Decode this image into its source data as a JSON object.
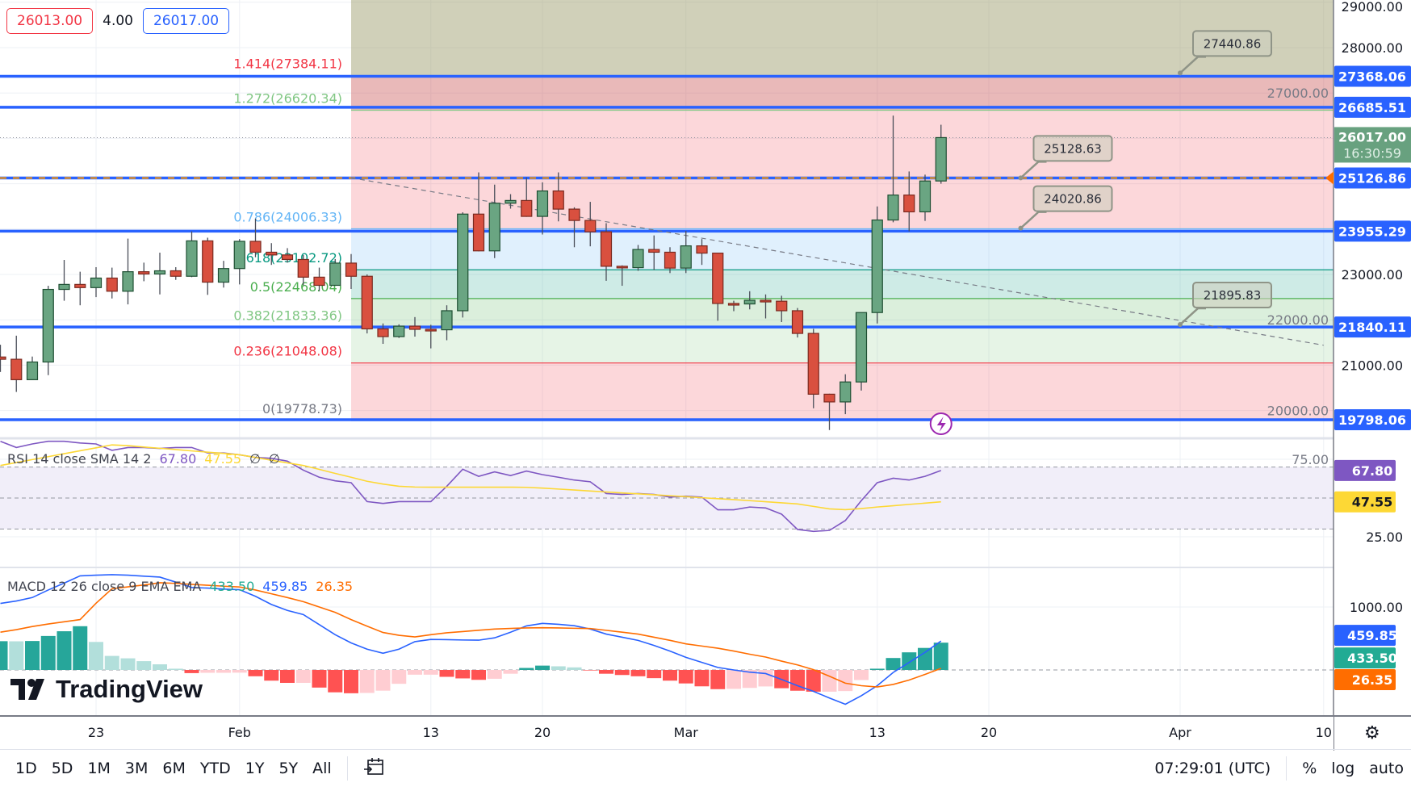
{
  "quote": {
    "bid": "26013.00",
    "spread": "4.00",
    "ask": "26017.00"
  },
  "colors": {
    "up": "#6aa582",
    "up_border": "#1f4f33",
    "down": "#d9503f",
    "down_border": "#7a2a20",
    "hline": "#2962ff",
    "rsi": "#7e57c2",
    "rsi_sma": "#fdd835",
    "macd": "#2962ff",
    "signal": "#ff6d00",
    "hist_up_strong": "#26a69a",
    "hist_up_weak": "#b2dfdb",
    "hist_down_strong": "#ff5252",
    "hist_down_weak": "#ffcdd2",
    "price_label": "#68a17f"
  },
  "logo": {
    "text": "TradingView",
    "icon": "tradingview-logo-icon"
  },
  "rsi_legend": {
    "title": "RSI 14 close SMA 14 2",
    "rsi": "67.80",
    "sma": "47.55",
    "extra1": "∅",
    "extra2": "∅"
  },
  "macd_legend": {
    "title": "MACD 12 26 close 9 EMA EMA",
    "hist": "433.50",
    "macd": "459.85",
    "signal": "26.35"
  },
  "time_axis": {
    "ticks": [
      {
        "date": "2023-01-23",
        "label": "23"
      },
      {
        "date": "2023-02-01",
        "label": "Feb"
      },
      {
        "date": "2023-02-13",
        "label": "13"
      },
      {
        "date": "2023-02-20",
        "label": "20"
      },
      {
        "date": "2023-03-01",
        "label": "Mar"
      },
      {
        "date": "2023-03-13",
        "label": "13"
      },
      {
        "date": "2023-03-20",
        "label": "20"
      },
      {
        "date": "2023-04-01",
        "label": "Apr"
      },
      {
        "date": "2023-04-10",
        "label": "10"
      }
    ],
    "settings_icon": "gear-icon"
  },
  "price_axis": {
    "ticks": [
      "29000.00",
      "28000.00",
      "27000.00",
      "23000.00",
      "22000.00",
      "21000.00",
      "20000.00"
    ],
    "labels": [
      {
        "value": "27368.06",
        "color": "#2962ff"
      },
      {
        "value": "26685.51",
        "color": "#2962ff"
      },
      {
        "value": "25126.86",
        "color": "#2962ff",
        "marker": "#ff6d00"
      },
      {
        "value": "23955.29",
        "color": "#2962ff"
      },
      {
        "value": "21840.11",
        "color": "#2962ff"
      },
      {
        "value": "19798.06",
        "color": "#2962ff"
      }
    ],
    "last_price": {
      "value": "26017.00",
      "countdown": "16:30:59"
    },
    "rsi_ticks": [
      "75.00",
      "25.00"
    ],
    "rsi_labels": [
      {
        "value": "67.80",
        "color": "#7e57c2",
        "text": "#ffffff"
      },
      {
        "value": "47.55",
        "color": "#fdd835",
        "text": "#131722"
      }
    ],
    "macd_ticks": [
      "1000.00"
    ],
    "macd_labels": [
      {
        "value": "459.85",
        "color": "#2962ff"
      },
      {
        "value": "433.50",
        "color": "#22ab94"
      },
      {
        "value": "26.35",
        "color": "#ff6d00"
      }
    ]
  },
  "toolbar": {
    "ranges": [
      "1D",
      "5D",
      "1M",
      "3M",
      "6M",
      "YTD",
      "1Y",
      "5Y",
      "All"
    ],
    "date_range_icon": "calendar-goto-icon",
    "clock": "07:29:01 (UTC)",
    "percent": "%",
    "log": "log",
    "auto": "auto"
  },
  "drawings": {
    "horizontal_lines": [
      27368.06,
      26685.51,
      25126.86,
      23955.29,
      21840.11,
      19798.06
    ],
    "fib": {
      "start_date": "2023-02-08",
      "levels": [
        {
          "ratio": 0,
          "price": 19778.73,
          "label": "0(19778.73)",
          "color": "#787b86",
          "fill": "rgba(242,54,69,0.2)"
        },
        {
          "ratio": 0.236,
          "price": 21048.08,
          "label": "0.236(21048.08)",
          "color": "#f23645",
          "fill": "rgba(129,199,132,0.2)"
        },
        {
          "ratio": 0.382,
          "price": 21833.36,
          "label": "0.382(21833.36)",
          "color": "#81c784",
          "fill": "rgba(76,175,80,0.2)"
        },
        {
          "ratio": 0.5,
          "price": 22468.04,
          "label": "0.5(22468.04)",
          "color": "#4caf50",
          "fill": "rgba(8,153,129,0.2)"
        },
        {
          "ratio": 0.618,
          "price": 23102.72,
          "label": "0.618(23102.72)",
          "color": "#089981",
          "fill": "rgba(100,181,246,0.2)"
        },
        {
          "ratio": 0.786,
          "price": 24006.33,
          "label": "0.786(24006.33)",
          "color": "#64b5f6",
          "fill": "rgba(242,54,69,0.2)"
        },
        {
          "ratio": 1.272,
          "price": 26620.34,
          "label": "1.272(26620.34)",
          "color": "#81c784",
          "fill": "rgba(200,80,80,0.4)"
        },
        {
          "ratio": 1.414,
          "price": 27384.11,
          "label": "1.414(27384.11)",
          "color": "#f23645",
          "fill": "rgba(150,150,100,0.45)"
        }
      ]
    },
    "trend_line": {
      "start": [
        "2023-02-08",
        25130
      ],
      "end": [
        "2023-04-10",
        21440
      ]
    },
    "callouts": [
      {
        "date": "2023-04-01",
        "price": 27440.86,
        "label": "27440.86"
      },
      {
        "date": "2023-03-22",
        "price": 25128.63,
        "label": "25128.63"
      },
      {
        "date": "2023-03-22",
        "price": 24020.86,
        "label": "24020.86"
      },
      {
        "date": "2023-04-01",
        "price": 21895.83,
        "label": "21895.83"
      }
    ],
    "alert_icon": "lightning-icon"
  },
  "chart_data": [
    {
      "type": "candlestick",
      "ylim": [
        19200,
        29050
      ],
      "columns": [
        "date",
        "open",
        "high",
        "low",
        "close"
      ],
      "candles": [
        [
          "2023-01-17",
          21180,
          21450,
          20850,
          21130
        ],
        [
          "2023-01-18",
          21130,
          21650,
          20410,
          20680
        ],
        [
          "2023-01-19",
          20680,
          21190,
          20670,
          21070
        ],
        [
          "2023-01-20",
          21070,
          22750,
          20780,
          22670
        ],
        [
          "2023-01-21",
          22670,
          23320,
          22420,
          22780
        ],
        [
          "2023-01-22",
          22780,
          23060,
          22320,
          22710
        ],
        [
          "2023-01-23",
          22710,
          23160,
          22500,
          22920
        ],
        [
          "2023-01-24",
          22920,
          23150,
          22470,
          22630
        ],
        [
          "2023-01-25",
          22630,
          23790,
          22340,
          23060
        ],
        [
          "2023-01-26",
          23060,
          23260,
          22850,
          23010
        ],
        [
          "2023-01-27",
          23010,
          23480,
          22560,
          23080
        ],
        [
          "2023-01-28",
          23080,
          23160,
          22880,
          22960
        ],
        [
          "2023-01-29",
          22960,
          23950,
          22940,
          23740
        ],
        [
          "2023-01-30",
          23740,
          23810,
          22550,
          22830
        ],
        [
          "2023-01-31",
          22830,
          23300,
          22710,
          23130
        ],
        [
          "2023-02-01",
          23130,
          23780,
          22780,
          23730
        ],
        [
          "2023-02-02",
          23730,
          24230,
          23380,
          23490
        ],
        [
          "2023-02-03",
          23490,
          23690,
          23210,
          23430
        ],
        [
          "2023-02-04",
          23430,
          23580,
          23260,
          23330
        ],
        [
          "2023-02-05",
          23330,
          23430,
          22760,
          22940
        ],
        [
          "2023-02-06",
          22940,
          23150,
          22630,
          22760
        ],
        [
          "2023-02-07",
          22760,
          23340,
          22750,
          23250
        ],
        [
          "2023-02-08",
          23250,
          23450,
          22680,
          22960
        ],
        [
          "2023-02-09",
          22960,
          23000,
          21700,
          21800
        ],
        [
          "2023-02-10",
          21800,
          21920,
          21470,
          21630
        ],
        [
          "2023-02-11",
          21630,
          21900,
          21600,
          21860
        ],
        [
          "2023-02-12",
          21860,
          22060,
          21630,
          21790
        ],
        [
          "2023-02-13",
          21790,
          21890,
          21370,
          21780
        ],
        [
          "2023-02-14",
          21780,
          22320,
          21550,
          22200
        ],
        [
          "2023-02-15",
          22200,
          24370,
          22050,
          24330
        ],
        [
          "2023-02-16",
          24330,
          25250,
          23510,
          23520
        ],
        [
          "2023-02-17",
          23520,
          24980,
          23360,
          24570
        ],
        [
          "2023-02-18",
          24570,
          24770,
          24450,
          24630
        ],
        [
          "2023-02-19",
          24630,
          25140,
          24270,
          24280
        ],
        [
          "2023-02-20",
          24280,
          25030,
          23880,
          24840
        ],
        [
          "2023-02-21",
          24840,
          25250,
          24170,
          24440
        ],
        [
          "2023-02-22",
          24440,
          24480,
          23600,
          24190
        ],
        [
          "2023-02-23",
          24190,
          24600,
          23620,
          23940
        ],
        [
          "2023-02-24",
          23940,
          24130,
          22860,
          23180
        ],
        [
          "2023-02-25",
          23180,
          23200,
          22750,
          23150
        ],
        [
          "2023-02-26",
          23150,
          23650,
          23080,
          23550
        ],
        [
          "2023-02-27",
          23550,
          23860,
          23100,
          23490
        ],
        [
          "2023-02-28",
          23490,
          23600,
          23030,
          23140
        ],
        [
          "2023-03-01",
          23140,
          23960,
          23030,
          23630
        ],
        [
          "2023-03-02",
          23630,
          23780,
          23210,
          23470
        ],
        [
          "2023-03-03",
          23470,
          23480,
          21980,
          22360
        ],
        [
          "2023-03-04",
          22360,
          22420,
          22190,
          22350
        ],
        [
          "2023-03-05",
          22350,
          22630,
          22230,
          22430
        ],
        [
          "2023-03-06",
          22430,
          22560,
          22030,
          22410
        ],
        [
          "2023-03-07",
          22410,
          22530,
          21950,
          22200
        ],
        [
          "2023-03-08",
          22200,
          22260,
          21610,
          21700
        ],
        [
          "2023-03-09",
          21700,
          21800,
          20050,
          20360
        ],
        [
          "2023-03-10",
          20360,
          20370,
          19570,
          20190
        ],
        [
          "2023-03-11",
          20190,
          20800,
          19920,
          20630
        ],
        [
          "2023-03-12",
          20630,
          22160,
          20440,
          22160
        ],
        [
          "2023-03-13",
          22160,
          24500,
          21920,
          24200
        ],
        [
          "2023-03-14",
          24200,
          26500,
          24150,
          24750
        ],
        [
          "2023-03-15",
          24750,
          25270,
          23950,
          24380
        ],
        [
          "2023-03-16",
          24380,
          25200,
          24180,
          25060
        ],
        [
          "2023-03-17",
          25060,
          26300,
          25000,
          26017
        ]
      ],
      "last_price": 26017
    },
    {
      "type": "line",
      "ylim": [
        0,
        100
      ],
      "bands": [
        70,
        50,
        30
      ],
      "series": [
        {
          "name": "RSI",
          "values": [
            86.6,
            82.6,
            84.9,
            86.6,
            86.6,
            85.5,
            84.9,
            80.8,
            82.6,
            82.6,
            82.0,
            82.6,
            82.6,
            79.1,
            79.1,
            77.9,
            76.2,
            75.6,
            73.8,
            68.0,
            63.4,
            61.1,
            59.9,
            47.7,
            46.5,
            47.7,
            47.7,
            47.7,
            57.6,
            68.6,
            64.0,
            66.9,
            64.5,
            67.4,
            65.1,
            63.4,
            61.6,
            60.5,
            52.9,
            52.3,
            52.9,
            52.3,
            50.6,
            51.2,
            50.6,
            42.4,
            42.4,
            44.2,
            43.6,
            39.6,
            29.7,
            28.5,
            29.1,
            35.5,
            48.3,
            59.9,
            62.8,
            61.6,
            64.0,
            67.8
          ]
        },
        {
          "name": "SMA",
          "values": [
            71.0,
            72.9,
            74.8,
            76.7,
            78.6,
            80.5,
            82.4,
            84.3,
            83.8,
            82.9,
            82.1,
            81.3,
            80.4,
            79.6,
            78.8,
            77.9,
            76.2,
            74.4,
            72.7,
            71.0,
            68.5,
            65.9,
            63.4,
            60.8,
            59.0,
            57.6,
            57.1,
            57.0,
            57.0,
            57.0,
            57.0,
            57.0,
            57.0,
            56.9,
            56.4,
            55.8,
            55.2,
            54.5,
            53.9,
            53.3,
            52.7,
            52.1,
            51.5,
            50.9,
            50.2,
            49.6,
            49.0,
            48.3,
            47.6,
            46.9,
            46.2,
            44.6,
            43.0,
            42.5,
            43.2,
            44.2,
            45.0,
            45.9,
            46.7,
            47.55
          ]
        }
      ]
    },
    {
      "type": "line",
      "series": [
        {
          "name": "MACD",
          "values": [
            1057,
            1095,
            1150,
            1270,
            1380,
            1495,
            1505,
            1513,
            1505,
            1490,
            1475,
            1395,
            1310,
            1300,
            1285,
            1275,
            1170,
            1040,
            945,
            880,
            720,
            560,
            430,
            330,
            266,
            330,
            450,
            485,
            481,
            476,
            473,
            510,
            600,
            700,
            740,
            725,
            703,
            650,
            570,
            520,
            470,
            390,
            300,
            200,
            120,
            40,
            0,
            -35,
            -57,
            -150,
            -250,
            -340,
            -445,
            -545,
            -410,
            -250,
            -40,
            120,
            280,
            459.85
          ]
        },
        {
          "name": "Signal",
          "values": [
            600,
            640,
            690,
            730,
            765,
            800,
            1060,
            1290,
            1320,
            1350,
            1385,
            1375,
            1360,
            1345,
            1330,
            1318,
            1270,
            1210,
            1150,
            1085,
            1000,
            915,
            800,
            695,
            595,
            550,
            525,
            560,
            590,
            610,
            630,
            650,
            660,
            668,
            671,
            667,
            662,
            658,
            630,
            600,
            570,
            520,
            470,
            414,
            380,
            345,
            300,
            250,
            205,
            140,
            80,
            5,
            -100,
            -210,
            -250,
            -270,
            -230,
            -160,
            -70,
            26.35
          ]
        }
      ],
      "histogram": "MACD - Signal"
    }
  ]
}
